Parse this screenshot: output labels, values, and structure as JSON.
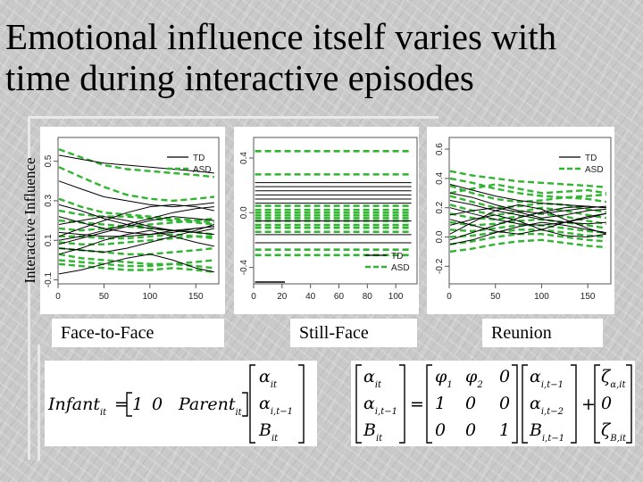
{
  "slide": {
    "title": "Emotional influence itself varies with time during interactive episodes",
    "ylabel": "Interactive Influence"
  },
  "colors": {
    "td": "#000000",
    "asd": "#2fb52f"
  },
  "chart_data": [
    {
      "type": "line",
      "panel": "Face-to-Face",
      "xlim": [
        0,
        175
      ],
      "ylim": [
        -0.12,
        0.62
      ],
      "x_ticks": [
        "0",
        "50",
        "100",
        "150"
      ],
      "y_ticks": [
        "-0.1",
        "0.1",
        "0.3",
        "0.5"
      ],
      "legend": [
        "TD",
        "ASD"
      ],
      "legend_position": "top-right",
      "x": [
        1,
        25,
        50,
        75,
        100,
        125,
        150,
        170
      ],
      "series_td": [
        [
          0.53,
          0.51,
          0.49,
          0.48,
          0.47,
          0.46,
          0.45,
          0.44
        ],
        [
          0.4,
          0.36,
          0.32,
          0.3,
          0.28,
          0.27,
          0.28,
          0.29
        ],
        [
          0.12,
          0.16,
          0.2,
          0.24,
          0.27,
          0.28,
          0.27,
          0.25
        ],
        [
          0.08,
          0.11,
          0.14,
          0.17,
          0.2,
          0.22,
          0.21,
          0.2
        ],
        [
          0.22,
          0.19,
          0.16,
          0.14,
          0.13,
          0.14,
          0.16,
          0.17
        ],
        [
          0.14,
          0.13,
          0.12,
          0.12,
          0.13,
          0.15,
          0.14,
          0.13
        ],
        [
          0.03,
          0.06,
          0.1,
          0.13,
          0.15,
          0.12,
          0.09,
          0.07
        ],
        [
          0.18,
          0.2,
          0.22,
          0.2,
          0.17,
          0.15,
          0.14,
          0.16
        ],
        [
          0.06,
          0.05,
          0.04,
          0.06,
          0.09,
          0.12,
          0.15,
          0.18
        ],
        [
          0.28,
          0.25,
          0.21,
          0.18,
          0.16,
          0.15,
          0.16,
          0.17
        ],
        [
          0.1,
          0.12,
          0.15,
          0.18,
          0.21,
          0.24,
          0.26,
          0.27
        ],
        [
          -0.07,
          -0.05,
          -0.02,
          0.01,
          0.03,
          0.0,
          -0.04,
          -0.06
        ]
      ],
      "series_asd": [
        [
          0.56,
          0.52,
          0.48,
          0.46,
          0.45,
          0.44,
          0.43,
          0.42
        ],
        [
          0.47,
          0.42,
          0.37,
          0.33,
          0.31,
          0.3,
          0.31,
          0.32
        ],
        [
          0.31,
          0.27,
          0.24,
          0.23,
          0.22,
          0.21,
          0.2,
          0.19
        ],
        [
          0.25,
          0.23,
          0.22,
          0.22,
          0.21,
          0.2,
          0.19,
          0.18
        ],
        [
          0.2,
          0.19,
          0.18,
          0.17,
          0.16,
          0.15,
          0.14,
          0.13
        ],
        [
          0.16,
          0.15,
          0.16,
          0.17,
          0.18,
          0.19,
          0.2,
          0.21
        ],
        [
          0.12,
          0.12,
          0.11,
          0.11,
          0.12,
          0.13,
          0.12,
          0.11
        ],
        [
          0.09,
          0.08,
          0.08,
          0.09,
          0.1,
          0.11,
          0.12,
          0.12
        ],
        [
          0.06,
          0.05,
          0.04,
          0.03,
          0.03,
          0.04,
          0.05,
          0.06
        ],
        [
          0.03,
          0.01,
          0.0,
          -0.01,
          -0.02,
          -0.02,
          -0.01,
          0.0
        ],
        [
          0.0,
          -0.01,
          -0.02,
          -0.03,
          -0.03,
          -0.02,
          -0.03,
          -0.04
        ],
        [
          -0.02,
          -0.03,
          -0.04,
          -0.05,
          -0.05,
          -0.04,
          -0.05,
          -0.06
        ]
      ]
    },
    {
      "type": "line",
      "panel": "Still-Face",
      "xlim": [
        0,
        115
      ],
      "ylim": [
        -0.52,
        0.55
      ],
      "x_ticks": [
        "0",
        "20",
        "40",
        "60",
        "80",
        "100"
      ],
      "y_ticks": [
        "-0.4",
        "0.0",
        "0.4"
      ],
      "legend": [
        "TD",
        "ASD"
      ],
      "legend_position": "bottom-right",
      "td_levels": [
        0.22,
        0.19,
        0.16,
        0.13,
        0.1,
        0.07,
        -0.06,
        -0.16,
        -0.22
      ],
      "td_short": {
        "level": -0.52,
        "x": [
          1,
          22
        ]
      },
      "asd_levels": [
        0.45,
        0.28,
        0.05,
        0.02,
        0.0,
        -0.02,
        -0.04,
        -0.06,
        -0.09,
        -0.11,
        -0.14,
        -0.27,
        -0.31
      ]
    },
    {
      "type": "line",
      "panel": "Reunion",
      "xlim": [
        0,
        175
      ],
      "ylim": [
        -0.32,
        0.68
      ],
      "x_ticks": [
        "0",
        "50",
        "100",
        "150"
      ],
      "y_ticks": [
        "-0.2",
        "0.0",
        "0.2",
        "0.4",
        "0.6"
      ],
      "legend": [
        "TD",
        "ASD"
      ],
      "legend_position": "top-right",
      "x": [
        1,
        25,
        50,
        75,
        100,
        125,
        150,
        170
      ],
      "series_td": [
        [
          0.02,
          0.1,
          0.18,
          0.22,
          0.19,
          0.12,
          0.06,
          0.02
        ],
        [
          0.3,
          0.27,
          0.22,
          0.18,
          0.16,
          0.18,
          0.2,
          0.21
        ],
        [
          0.12,
          0.08,
          0.04,
          0.02,
          0.05,
          0.1,
          0.14,
          0.16
        ],
        [
          -0.02,
          0.03,
          0.08,
          0.13,
          0.17,
          0.2,
          0.21,
          0.2
        ],
        [
          0.2,
          0.16,
          0.12,
          0.09,
          0.08,
          0.1,
          0.13,
          0.16
        ],
        [
          0.08,
          0.12,
          0.15,
          0.11,
          0.05,
          0.01,
          0.0,
          0.02
        ],
        [
          0.36,
          0.32,
          0.28,
          0.25,
          0.23,
          0.22,
          0.21,
          0.2
        ],
        [
          -0.05,
          -0.02,
          0.03,
          0.07,
          0.1,
          0.08,
          0.05,
          0.03
        ],
        [
          0.25,
          0.22,
          0.18,
          0.15,
          0.12,
          0.1,
          0.09,
          0.1
        ],
        [
          0.15,
          0.18,
          0.2,
          0.17,
          0.13,
          0.15,
          0.18,
          0.19
        ]
      ],
      "series_asd": [
        [
          0.45,
          0.42,
          0.4,
          0.38,
          0.37,
          0.36,
          0.35,
          0.34
        ],
        [
          0.4,
          0.37,
          0.33,
          0.3,
          0.28,
          0.27,
          0.28,
          0.29
        ],
        [
          0.35,
          0.3,
          0.26,
          0.24,
          0.25,
          0.27,
          0.26,
          0.24
        ],
        [
          0.28,
          0.24,
          0.2,
          0.21,
          0.23,
          0.22,
          0.19,
          0.17
        ],
        [
          0.22,
          0.18,
          0.15,
          0.17,
          0.2,
          0.18,
          0.15,
          0.13
        ],
        [
          0.16,
          0.13,
          0.12,
          0.14,
          0.16,
          0.14,
          0.11,
          0.09
        ],
        [
          0.1,
          0.08,
          0.09,
          0.11,
          0.12,
          0.1,
          0.08,
          0.06
        ],
        [
          0.05,
          0.04,
          0.06,
          0.08,
          0.08,
          0.06,
          0.04,
          0.03
        ],
        [
          0.0,
          0.01,
          0.03,
          0.05,
          0.05,
          0.03,
          0.01,
          0.0
        ],
        [
          -0.05,
          -0.03,
          0.0,
          0.02,
          0.02,
          0.0,
          -0.02,
          -0.03
        ],
        [
          -0.1,
          -0.08,
          -0.05,
          -0.03,
          -0.02,
          -0.04,
          -0.06,
          -0.07
        ],
        [
          0.3,
          0.33,
          0.36,
          0.33,
          0.3,
          0.31,
          0.32,
          0.3
        ]
      ]
    }
  ],
  "equations": {
    "eq1": {
      "lhs": "Infant",
      "lhs_sub": "it",
      "eq": "=",
      "row": [
        "1",
        "0",
        "Parent"
      ],
      "row_sub": "it",
      "vec": [
        [
          "α",
          "it"
        ],
        [
          "α",
          "i,t−1"
        ],
        [
          "B",
          "it"
        ]
      ]
    },
    "eq2": {
      "lhs": [
        [
          "α",
          "it"
        ],
        [
          "α",
          "i,t−1"
        ],
        [
          "B",
          "it"
        ]
      ],
      "eq": "=",
      "matrix": [
        [
          "φ",
          "1",
          "φ",
          "2",
          "0"
        ],
        [
          "1",
          "",
          "0",
          "",
          "0"
        ],
        [
          "0",
          "",
          "0",
          "",
          "1"
        ]
      ],
      "vec": [
        [
          "α",
          "i,t−1"
        ],
        [
          "α",
          "i,t−2"
        ],
        [
          "B",
          "i,t−1"
        ]
      ],
      "plus": "+",
      "noise": [
        [
          "ζ",
          "α,it"
        ],
        [
          "0",
          ""
        ],
        [
          "ζ",
          "B,it"
        ]
      ]
    }
  }
}
